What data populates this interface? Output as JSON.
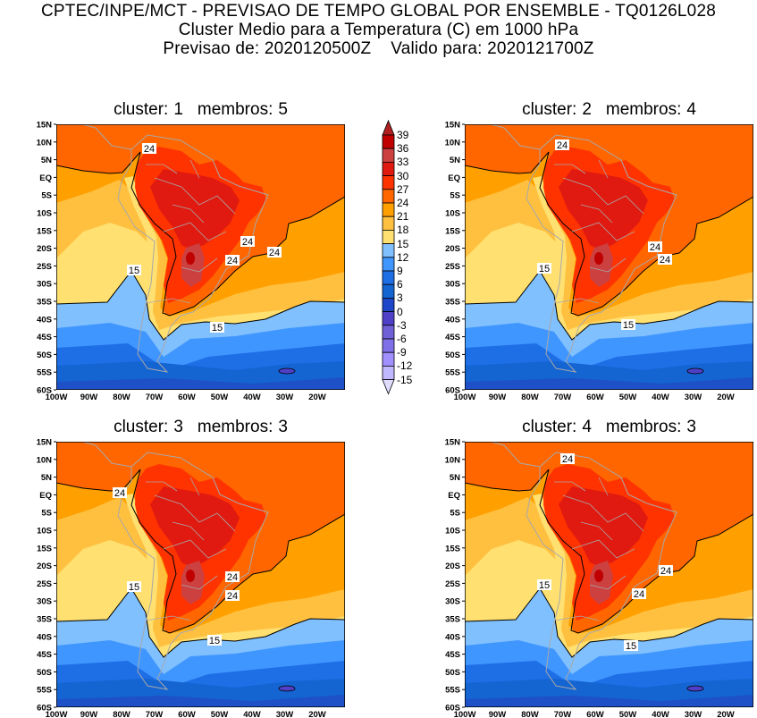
{
  "header": {
    "line1": "CPTEC/INPE/MCT - PREVISAO DE TEMPO GLOBAL POR ENSEMBLE - TQ0126L028",
    "line2": "Cluster Medio para a Temperatura (C) em 1000 hPa",
    "line3": "Previsao de: 2020120500Z    Valido para: 2020121700Z"
  },
  "panels": [
    {
      "cluster_label": "cluster:",
      "cluster": "1",
      "membros_label": "membros:",
      "membros": "5",
      "contour_labels": [
        "24",
        "24",
        "24",
        "24",
        "15",
        "15"
      ]
    },
    {
      "cluster_label": "cluster:",
      "cluster": "2",
      "membros_label": "membros:",
      "membros": "4",
      "contour_labels": [
        "24",
        "24",
        "24",
        "15",
        "15"
      ]
    },
    {
      "cluster_label": "cluster:",
      "cluster": "3",
      "membros_label": "membros:",
      "membros": "3",
      "contour_labels": [
        "24",
        "24",
        "24",
        "15",
        "15"
      ]
    },
    {
      "cluster_label": "cluster:",
      "cluster": "4",
      "membros_label": "membros:",
      "membros": "3",
      "contour_labels": [
        "24",
        "24",
        "24",
        "15",
        "15"
      ]
    }
  ],
  "axes": {
    "lat_labels": [
      "15N",
      "10N",
      "5N",
      "EQ",
      "5S",
      "10S",
      "15S",
      "20S",
      "25S",
      "30S",
      "35S",
      "40S",
      "45S",
      "50S",
      "55S",
      "60S"
    ],
    "lon_labels": [
      "100W",
      "90W",
      "80W",
      "70W",
      "60W",
      "50W",
      "40W",
      "30W",
      "20W"
    ]
  },
  "colorbar": {
    "labels": [
      "39",
      "36",
      "33",
      "30",
      "27",
      "24",
      "21",
      "18",
      "15",
      "12",
      "9",
      "6",
      "3",
      "0",
      "-3",
      "-6",
      "-9",
      "-12",
      "-15"
    ],
    "over_color": "#b02020",
    "colors": [
      "#c00000",
      "#cc4040",
      "#e01a10",
      "#ff3300",
      "#ff6600",
      "#ffa000",
      "#ffc040",
      "#ffe070",
      "#80c0ff",
      "#4096ff",
      "#1e6ee6",
      "#1464d2",
      "#1e46c8",
      "#5040c8",
      "#7060d8",
      "#8070e8",
      "#a090ff",
      "#c0b8ff"
    ],
    "under_color": "#e0dcff"
  }
}
